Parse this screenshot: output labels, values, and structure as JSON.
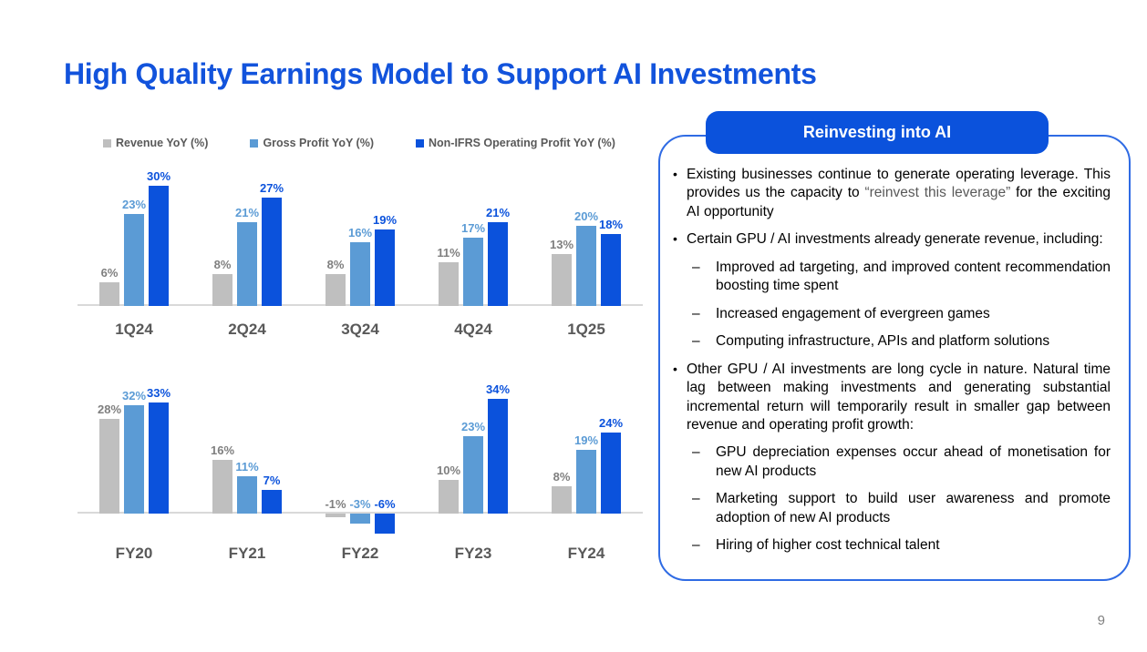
{
  "title": "High Quality Earnings Model to Support AI Investments",
  "page_number": "9",
  "colors": {
    "title_blue": "#1253DC",
    "accent_blue": "#0B52DC",
    "light_blue": "#5B9BD5",
    "bar_gray": "#BFBFBF",
    "panel_border": "#2F6BE4",
    "text_gray": "#595959",
    "value_label_gray": "#7F7F7F",
    "axis_gray": "#D9D9D9",
    "page_number_gray": "#808080"
  },
  "chart_data": [
    {
      "type": "bar",
      "title": "",
      "categories": [
        "1Q24",
        "2Q24",
        "3Q24",
        "4Q24",
        "1Q25"
      ],
      "series": [
        {
          "name": "Revenue YoY (%)",
          "color": "#BFBFBF",
          "label_color": "#7F7F7F",
          "values": [
            6,
            8,
            8,
            11,
            13
          ]
        },
        {
          "name": "Gross Profit YoY (%)",
          "color": "#5B9BD5",
          "label_color": "#5B9BD5",
          "values": [
            23,
            21,
            16,
            17,
            20
          ]
        },
        {
          "name": "Non-IFRS Operating Profit YoY (%)",
          "color": "#0B52DC",
          "label_color": "#0B52DC",
          "values": [
            30,
            27,
            19,
            21,
            18
          ]
        }
      ],
      "ylim": [
        0,
        30
      ],
      "grid": false,
      "legend_position": "top",
      "value_label_format": "{v}%"
    },
    {
      "type": "bar",
      "title": "",
      "categories": [
        "FY20",
        "FY21",
        "FY22",
        "FY23",
        "FY24"
      ],
      "series": [
        {
          "name": "Revenue YoY (%)",
          "color": "#BFBFBF",
          "label_color": "#7F7F7F",
          "values": [
            28,
            16,
            -1,
            10,
            8
          ]
        },
        {
          "name": "Gross Profit YoY (%)",
          "color": "#5B9BD5",
          "label_color": "#5B9BD5",
          "values": [
            32,
            11,
            -3,
            23,
            19
          ]
        },
        {
          "name": "Non-IFRS Operating Profit YoY (%)",
          "color": "#0B52DC",
          "label_color": "#0B52DC",
          "values": [
            33,
            7,
            -6,
            34,
            24
          ]
        }
      ],
      "ylim": [
        -6,
        34
      ],
      "grid": false,
      "legend_position": "none",
      "value_label_format": "{v}%"
    }
  ],
  "panel": {
    "header": "Reinvesting into AI",
    "bullets": [
      {
        "level": 1,
        "segments": [
          {
            "text": "Existing businesses continue to generate operating leverage. This provides us the capacity to "
          },
          {
            "text": "“reinvest this leverage”",
            "muted": true
          },
          {
            "text": " for the exciting AI opportunity"
          }
        ]
      },
      {
        "level": 1,
        "text": "Certain GPU / AI investments already generate revenue, including:"
      },
      {
        "level": 2,
        "text": "Improved ad targeting, and improved content recommendation boosting time spent"
      },
      {
        "level": 2,
        "text": "Increased engagement of evergreen games"
      },
      {
        "level": 2,
        "text": "Computing infrastructure, APIs and platform solutions"
      },
      {
        "level": 1,
        "text": "Other GPU / AI investments are long cycle in nature. Natural time lag between making investments and generating substantial incremental return will temporarily result in smaller gap between revenue and operating profit growth:"
      },
      {
        "level": 2,
        "text": "GPU depreciation expenses occur ahead of monetisation for new AI products"
      },
      {
        "level": 2,
        "text": "Marketing support to build user awareness and promote adoption of new AI products"
      },
      {
        "level": 2,
        "text": "Hiring of higher cost technical talent"
      }
    ]
  }
}
